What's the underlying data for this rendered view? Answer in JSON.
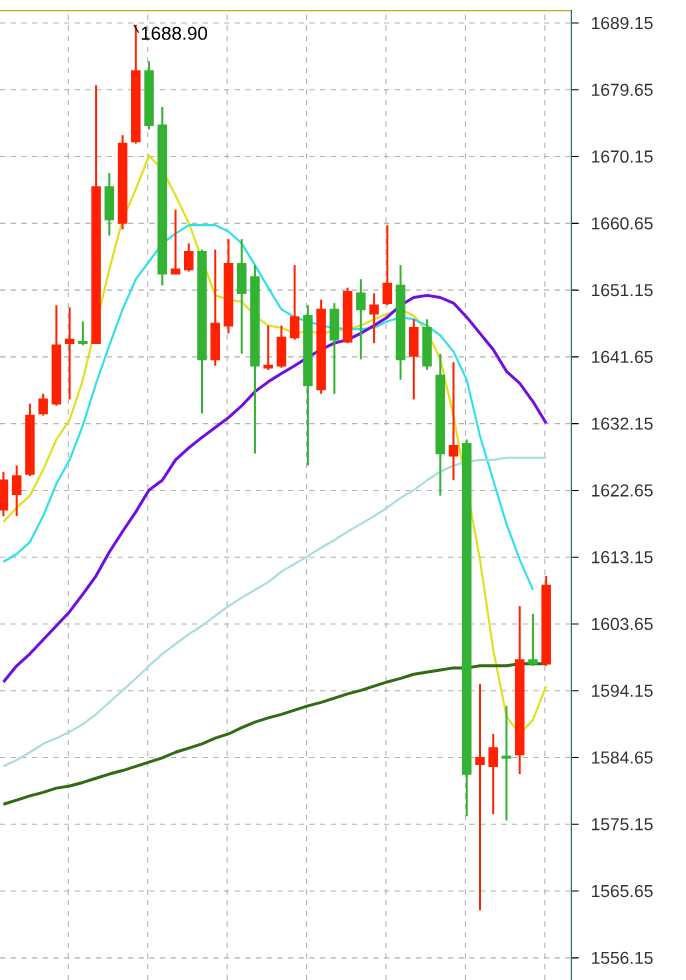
{
  "chart_data": {
    "type": "candlestick",
    "categories": [
      null,
      null,
      null,
      null,
      null,
      null,
      null,
      null,
      null,
      null,
      null,
      null,
      null,
      null,
      null,
      null,
      null,
      null,
      null,
      null,
      null,
      null,
      null,
      null,
      null,
      null,
      null,
      null,
      null,
      null,
      null,
      null,
      null,
      null,
      null,
      null,
      null,
      null,
      null,
      null,
      null,
      null
    ],
    "ohlc": [
      [
        1619.9,
        1625.3,
        1619.0,
        1624.1
      ],
      [
        1622.1,
        1626.2,
        1619.0,
        1624.7
      ],
      [
        1625.0,
        1635.0,
        1624.7,
        1633.3
      ],
      [
        1633.6,
        1636.4,
        1633.3,
        1635.6
      ],
      [
        1635.0,
        1649.0,
        1634.7,
        1643.3
      ],
      [
        1643.6,
        1648.7,
        1635.6,
        1644.1
      ],
      [
        1643.8,
        1646.7,
        1643.3,
        1643.6
      ],
      [
        1643.6,
        1680.3,
        1643.6,
        1665.8
      ],
      [
        1665.8,
        1667.8,
        1658.9,
        1661.2
      ],
      [
        1660.7,
        1673.2,
        1659.8,
        1672.0
      ],
      [
        1672.3,
        1688.9,
        1672.0,
        1682.3
      ],
      [
        1682.3,
        1683.7,
        1674.0,
        1674.6
      ],
      [
        1674.6,
        1677.2,
        1651.8,
        1653.5
      ],
      [
        1653.5,
        1662.6,
        1653.5,
        1654.1
      ],
      [
        1654.1,
        1657.8,
        1653.8,
        1656.6
      ],
      [
        1656.6,
        1656.9,
        1633.6,
        1641.3
      ],
      [
        1641.3,
        1656.9,
        1640.4,
        1646.4
      ],
      [
        1646.1,
        1658.4,
        1645.0,
        1654.9
      ],
      [
        1654.9,
        1658.4,
        1642.1,
        1650.7
      ],
      [
        1653.0,
        1654.7,
        1627.9,
        1640.4
      ],
      [
        1640.1,
        1646.1,
        1639.8,
        1640.4
      ],
      [
        1640.4,
        1646.1,
        1640.1,
        1644.4
      ],
      [
        1644.4,
        1654.7,
        1644.1,
        1647.3
      ],
      [
        1647.5,
        1649.0,
        1626.2,
        1637.6
      ],
      [
        1637.0,
        1649.8,
        1636.4,
        1648.4
      ],
      [
        1648.4,
        1649.3,
        1636.4,
        1644.1
      ],
      [
        1643.8,
        1651.5,
        1643.6,
        1650.9
      ],
      [
        1650.7,
        1652.7,
        1641.3,
        1648.4
      ],
      [
        1647.8,
        1650.7,
        1643.6,
        1649.0
      ],
      [
        1649.3,
        1660.4,
        1649.0,
        1652.1
      ],
      [
        1651.8,
        1654.7,
        1638.4,
        1641.3
      ],
      [
        1641.8,
        1647.0,
        1635.6,
        1645.8
      ],
      [
        1645.8,
        1647.0,
        1639.8,
        1640.4
      ],
      [
        1639.0,
        1642.1,
        1621.9,
        1627.9
      ],
      [
        1627.6,
        1640.9,
        1624.1,
        1629.0
      ],
      [
        1629.3,
        1629.9,
        1576.3,
        1582.3
      ],
      [
        1583.7,
        1595.1,
        1562.9,
        1584.6
      ],
      [
        1583.4,
        1588.0,
        1576.6,
        1586.0
      ],
      [
        1584.8,
        1592.0,
        1575.7,
        1584.6
      ],
      [
        1585.1,
        1606.2,
        1582.3,
        1598.5
      ],
      [
        1598.5,
        1605.1,
        1597.7,
        1598.0
      ],
      [
        1598.0,
        1610.5,
        1597.7,
        1609.1
      ]
    ],
    "colors": [
      "#ff2200",
      "#ff2200",
      "#ff2200",
      "#ff2200",
      "#ff2200",
      "#ff2200",
      "#33b233",
      "#ff2200",
      "#33b233",
      "#ff2200",
      "#ff2200",
      "#33b233",
      "#33b233",
      "#ff2200",
      "#ff2200",
      "#33b233",
      "#ff2200",
      "#ff2200",
      "#33b233",
      "#33b233",
      "#ff2200",
      "#ff2200",
      "#ff2200",
      "#33b233",
      "#ff2200",
      "#33b233",
      "#ff2200",
      "#33b233",
      "#ff2200",
      "#ff2200",
      "#33b233",
      "#ff2200",
      "#33b233",
      "#33b233",
      "#ff2200",
      "#33b233",
      "#ff2200",
      "#ff2200",
      "#33b233",
      "#ff2200",
      "#33b233",
      "#ff2200"
    ],
    "series": [
      {
        "type": "line",
        "color": "#e0e020",
        "values": [
          1618.2,
          1620.2,
          1621.9,
          1625.6,
          1629.9,
          1632.7,
          1638.4,
          null,
          1654.1,
          1661.2,
          1665.5,
          1670.3,
          1668.3,
          1664.6,
          1660.7,
          null,
          1650.4,
          1649.8,
          1649.5,
          1647.5,
          1646.1,
          1645.8,
          1645.0,
          1645.3,
          1645.0,
          1645.3,
          1645.6,
          1646.1,
          1647.0,
          1647.8,
          1648.4,
          1647.5,
          1645.3,
          1641.3,
          1633.3,
          null,
          1612.8,
          1600.0,
          1590.5,
          1588.0,
          1590.0,
          1594.8
        ]
      },
      {
        "type": "line",
        "color": "#30e0e8",
        "values": [
          1612.5,
          1613.6,
          1615.3,
          1619.0,
          1623.6,
          1627.0,
          1631.9,
          1637.9,
          1643.3,
          1648.4,
          1652.7,
          1655.2,
          1657.8,
          1659.2,
          1660.4,
          1660.4,
          1660.4,
          1659.5,
          1657.8,
          1654.7,
          1651.5,
          1648.4,
          1647.3,
          1646.7,
          1646.1,
          1645.8,
          1645.6,
          1645.6,
          1645.8,
          1646.7,
          1647.3,
          1647.0,
          1646.1,
          1644.7,
          1642.4,
          1638.4,
          1630.4,
          1624.1,
          1617.9,
          1612.8,
          1608.5,
          null
        ]
      },
      {
        "type": "line",
        "color": "#7010e0",
        "values": [
          1595.4,
          1597.7,
          1599.4,
          1601.4,
          1603.4,
          1605.4,
          1607.9,
          1610.5,
          1613.9,
          1616.8,
          1619.6,
          1622.7,
          1624.1,
          1627.0,
          1628.7,
          1630.2,
          1631.6,
          1633.0,
          1634.7,
          1636.7,
          1638.1,
          1639.3,
          1640.4,
          1641.6,
          1642.7,
          1643.6,
          1644.1,
          1645.0,
          1646.1,
          1647.3,
          1649.0,
          1650.1,
          1650.4,
          1650.1,
          1649.3,
          1647.3,
          1645.0,
          1642.7,
          1639.6,
          1637.9,
          1635.3,
          1632.2
        ]
      },
      {
        "type": "line",
        "color": "#a8dde0",
        "values": [
          1583.4,
          1584.3,
          1585.4,
          1586.6,
          1587.4,
          1588.3,
          1589.4,
          1590.8,
          1592.5,
          1594.2,
          1595.9,
          1597.7,
          1599.4,
          1600.8,
          1602.2,
          1603.4,
          1604.8,
          1606.2,
          1607.4,
          1608.5,
          1609.6,
          1611.1,
          1612.2,
          1613.3,
          1614.5,
          1615.6,
          1616.8,
          1617.9,
          1619.0,
          1620.2,
          1621.6,
          1622.7,
          1624.1,
          1625.3,
          1626.2,
          1626.7,
          1627.0,
          1627.0,
          1627.3,
          1627.3,
          1627.3,
          1627.3
        ]
      },
      {
        "type": "line",
        "color": "#336a14",
        "values": [
          1578.0,
          1578.6,
          1579.2,
          1579.7,
          1580.3,
          1580.6,
          1581.1,
          1581.7,
          1582.3,
          1582.8,
          1583.4,
          1584.0,
          1584.6,
          1585.4,
          1586.0,
          1586.6,
          1587.4,
          1588.0,
          1588.9,
          1589.7,
          1590.3,
          1590.8,
          1591.4,
          1592.0,
          1592.5,
          1593.1,
          1593.7,
          1594.2,
          1594.8,
          1595.4,
          1595.9,
          1596.5,
          1596.8,
          1597.1,
          1597.4,
          1597.4,
          1597.7,
          1597.7,
          1597.7,
          1598.0,
          1598.0,
          1598.0
        ]
      }
    ],
    "ylim": [
      1553,
      1691
    ],
    "yticks": [
      {
        "value": 1689.15,
        "label": "1689.15"
      },
      {
        "value": 1679.65,
        "label": "1679.65"
      },
      {
        "value": 1670.15,
        "label": "1670.15"
      },
      {
        "value": 1660.65,
        "label": "1660.65"
      },
      {
        "value": 1651.15,
        "label": "1651.15"
      },
      {
        "value": 1641.65,
        "label": "1641.65"
      },
      {
        "value": 1632.15,
        "label": "1632.15"
      },
      {
        "value": 1622.65,
        "label": "1622.65"
      },
      {
        "value": 1613.15,
        "label": "1613.15"
      },
      {
        "value": 1603.65,
        "label": "1603.65"
      },
      {
        "value": 1594.15,
        "label": "1594.15"
      },
      {
        "value": 1584.65,
        "label": "1584.65"
      },
      {
        "value": 1575.15,
        "label": "1575.15"
      },
      {
        "value": 1565.65,
        "label": "1565.65"
      },
      {
        "value": 1556.15,
        "label": "1556.15"
      }
    ],
    "annotations": [
      "1688.90"
    ],
    "grid": true,
    "tick_labels": "y"
  }
}
